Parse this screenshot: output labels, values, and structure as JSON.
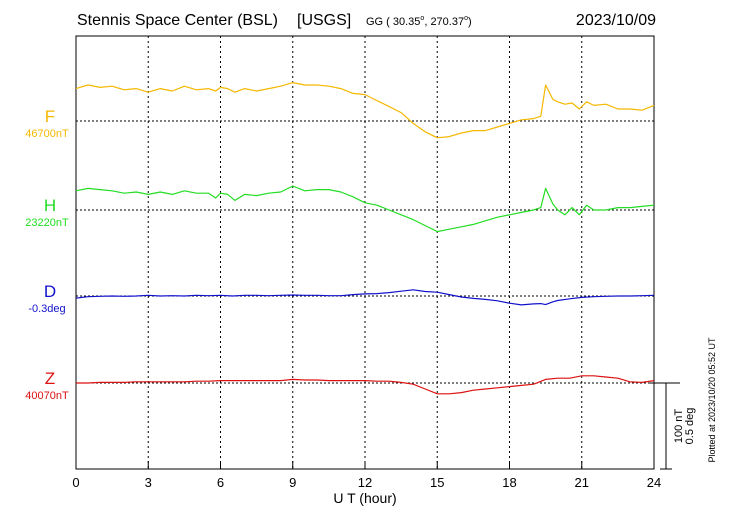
{
  "header": {
    "station": "Stennis Space Center (BSL)",
    "network": "[USGS]",
    "coords_prefix": "GG ( 30.35",
    "coords_mid": ", 270.37",
    "coords_suffix": ")",
    "date": "2023/10/09"
  },
  "footer": {
    "plotted": "Plotted at 2023/10/20 05:52 UT"
  },
  "chart_data": {
    "type": "line",
    "xlabel": "U T (hour)",
    "xlim": [
      0,
      24
    ],
    "xticks": [
      0,
      3,
      6,
      9,
      12,
      15,
      18,
      21,
      24
    ],
    "scale_bar": {
      "line1": "100 nT",
      "line2": "0.5 deg"
    },
    "grid": true,
    "series": [
      {
        "name": "F",
        "baseline_label": "46700nT",
        "color": "#f5b800",
        "x": [
          0,
          0.5,
          1,
          1.5,
          2,
          2.5,
          3,
          3.5,
          4,
          4.5,
          5,
          5.5,
          5.8,
          6,
          6.3,
          6.6,
          7,
          7.5,
          8,
          8.5,
          9,
          9.5,
          10,
          10.5,
          11,
          11.5,
          12,
          12.5,
          13,
          13.5,
          14,
          14.5,
          15,
          15.5,
          16,
          16.5,
          17,
          17.5,
          18,
          18.5,
          19,
          19.3,
          19.5,
          19.8,
          20,
          20.3,
          20.6,
          20.9,
          21.2,
          21.5,
          22,
          22.5,
          23,
          23.5,
          24
        ],
        "values": [
          27,
          30,
          28,
          29,
          26,
          27,
          24,
          27,
          25,
          29,
          26,
          27,
          25,
          28,
          27,
          24,
          27,
          25,
          27,
          29,
          32,
          30,
          30,
          29,
          27,
          23,
          22,
          17,
          12,
          7,
          -2,
          -9,
          -14,
          -13,
          -10,
          -8,
          -8,
          -5,
          -2,
          1,
          2,
          4,
          30,
          18,
          16,
          14,
          15,
          10,
          16,
          13,
          14,
          10,
          10,
          9,
          13
        ]
      },
      {
        "name": "H",
        "baseline_label": "23220nT",
        "color": "#22dd22",
        "x": [
          0,
          0.5,
          1,
          1.5,
          2,
          2.5,
          3,
          3.5,
          4,
          4.5,
          5,
          5.5,
          5.8,
          6,
          6.3,
          6.6,
          7,
          7.5,
          8,
          8.5,
          9,
          9.5,
          10,
          10.5,
          11,
          11.5,
          12,
          12.5,
          13,
          13.5,
          14,
          14.5,
          15,
          15.5,
          16,
          16.5,
          17,
          17.5,
          18,
          18.5,
          19,
          19.3,
          19.5,
          19.8,
          20,
          20.3,
          20.6,
          20.9,
          21.2,
          21.5,
          22,
          22.5,
          23,
          23.5,
          24
        ],
        "values": [
          16,
          18,
          17,
          16,
          14,
          15,
          13,
          15,
          13,
          16,
          14,
          14,
          10,
          14,
          13,
          8,
          13,
          12,
          14,
          15,
          20,
          16,
          17,
          17,
          15,
          11,
          6,
          4,
          0,
          -4,
          -8,
          -13,
          -18,
          -16,
          -14,
          -12,
          -9,
          -6,
          -4,
          -2,
          0,
          2,
          18,
          5,
          0,
          -4,
          2,
          -4,
          4,
          0,
          0,
          2,
          2,
          3,
          4
        ]
      },
      {
        "name": "D",
        "baseline_label": "-0.3deg",
        "color": "#1111cc",
        "x": [
          0,
          0.5,
          1,
          1.5,
          2,
          2.5,
          3,
          3.5,
          4,
          4.5,
          5,
          5.5,
          6,
          6.5,
          7,
          7.5,
          8,
          8.5,
          9,
          9.5,
          10,
          10.5,
          11,
          11.5,
          12,
          12.5,
          13,
          13.5,
          14,
          14.5,
          15,
          15.5,
          16,
          16.5,
          17,
          17.5,
          18,
          18.5,
          19,
          19.3,
          19.5,
          19.8,
          20,
          20.5,
          21,
          21.5,
          22,
          22.5,
          23,
          23.5,
          24
        ],
        "values": [
          -0.012,
          -0.004,
          -0.002,
          0,
          -0.002,
          0,
          0.004,
          0,
          0.002,
          0,
          0.004,
          0.002,
          0.004,
          0,
          0.004,
          0.004,
          0.002,
          0.004,
          0.006,
          0.004,
          0.004,
          0.002,
          0.002,
          0.008,
          0.012,
          0.014,
          0.02,
          0.028,
          0.036,
          0.026,
          0.022,
          0.008,
          -0.006,
          -0.014,
          -0.02,
          -0.028,
          -0.042,
          -0.052,
          -0.046,
          -0.044,
          -0.05,
          -0.034,
          -0.026,
          -0.016,
          -0.008,
          -0.004,
          -0.002,
          0,
          0,
          0.002,
          0.004
        ]
      },
      {
        "name": "Z",
        "baseline_label": "40070nT",
        "color": "#dd1111",
        "x": [
          0,
          0.5,
          1,
          1.5,
          2,
          2.5,
          3,
          3.5,
          4,
          4.5,
          5,
          5.5,
          6,
          6.5,
          7,
          7.5,
          8,
          8.5,
          9,
          9.5,
          10,
          10.5,
          11,
          11.5,
          12,
          12.5,
          13,
          13.5,
          14,
          14.5,
          15,
          15.5,
          16,
          16.5,
          17,
          17.5,
          18,
          18.5,
          19,
          19.5,
          20,
          20.5,
          21,
          21.5,
          22,
          22.5,
          23,
          23.5,
          24
        ],
        "values": [
          0,
          0,
          0.5,
          0.5,
          0.5,
          1,
          1,
          1,
          1,
          1,
          1.5,
          1.5,
          2,
          2,
          2,
          2,
          2,
          2,
          3,
          2.5,
          2.5,
          2,
          2,
          2,
          2,
          1.5,
          1.5,
          0.5,
          -1,
          -5,
          -9,
          -9,
          -8,
          -6,
          -5,
          -4,
          -3,
          -2,
          -1,
          3,
          4,
          4,
          6,
          6,
          5,
          4,
          1,
          0.5,
          2
        ]
      }
    ]
  }
}
